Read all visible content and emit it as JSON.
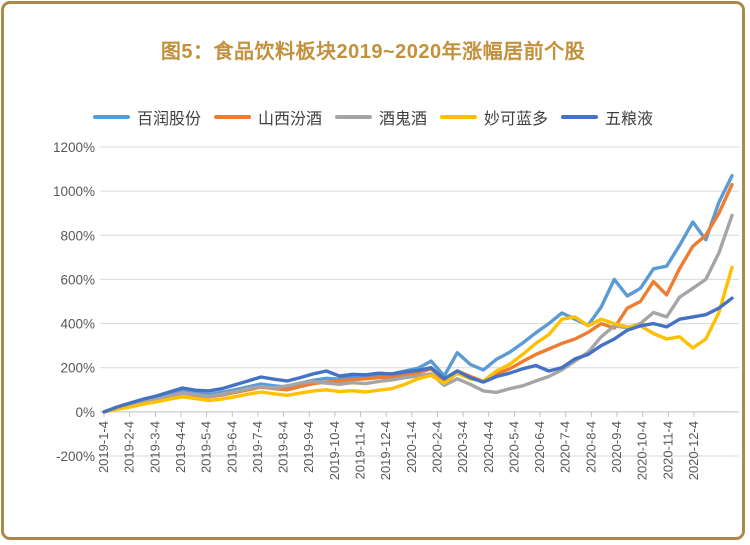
{
  "colors": {
    "card_border": "#AC884A",
    "title_text": "#C2913C",
    "axis_text": "#595959",
    "gridline": "#D9D9D9",
    "axis_line": "#BFBFBF"
  },
  "chart_data": {
    "type": "line",
    "title": "图5：食品饮料板块2019~2020年涨幅居前个股",
    "unit": "%",
    "grid": true,
    "legend_position": "top",
    "ylim": [
      -200,
      1200
    ],
    "y_tick_step": 200,
    "y_tick_labels": [
      "1200%",
      "1000%",
      "800%",
      "600%",
      "400%",
      "200%",
      "0%",
      "-200%"
    ],
    "x_tick_labels": [
      "2019-1-4",
      "2019-2-4",
      "2019-3-4",
      "2019-4-4",
      "2019-5-4",
      "2019-6-4",
      "2019-7-4",
      "2019-8-4",
      "2019-9-4",
      "2019-10-4",
      "2019-11-4",
      "2019-12-4",
      "2020-1-4",
      "2020-2-4",
      "2020-3-4",
      "2020-4-4",
      "2020-5-4",
      "2020-6-4",
      "2020-7-4",
      "2020-8-4",
      "2020-9-4",
      "2020-10-4",
      "2020-11-4",
      "2020-12-4"
    ],
    "series": [
      {
        "name": "百润股份",
        "color": "#5B9BD5",
        "values": [
          0,
          18,
          32,
          48,
          62,
          80,
          95,
          85,
          78,
          88,
          100,
          113,
          126,
          118,
          112,
          130,
          143,
          152,
          148,
          157,
          160,
          166,
          172,
          185,
          198,
          230,
          163,
          268,
          215,
          190,
          238,
          270,
          312,
          358,
          400,
          448,
          420,
          392,
          475,
          600,
          525,
          560,
          648,
          660,
          755,
          860,
          780,
          950,
          1070
        ]
      },
      {
        "name": "山西汾酒",
        "color": "#ED7D31",
        "values": [
          0,
          15,
          28,
          42,
          55,
          70,
          85,
          75,
          68,
          76,
          88,
          100,
          112,
          105,
          100,
          115,
          128,
          135,
          140,
          146,
          150,
          155,
          158,
          168,
          175,
          195,
          140,
          185,
          160,
          138,
          172,
          195,
          228,
          260,
          285,
          310,
          330,
          360,
          400,
          380,
          470,
          500,
          590,
          530,
          650,
          750,
          800,
          900,
          1030
        ]
      },
      {
        "name": "酒鬼酒",
        "color": "#A5A5A5",
        "values": [
          0,
          16,
          30,
          45,
          58,
          72,
          86,
          78,
          70,
          80,
          92,
          105,
          115,
          108,
          118,
          130,
          138,
          130,
          125,
          132,
          128,
          138,
          145,
          155,
          162,
          172,
          120,
          150,
          125,
          95,
          88,
          105,
          118,
          140,
          160,
          190,
          230,
          270,
          340,
          390,
          380,
          400,
          450,
          430,
          520,
          560,
          600,
          720,
          890
        ]
      },
      {
        "name": "妙可蓝多",
        "color": "#FFC000",
        "values": [
          0,
          12,
          22,
          35,
          45,
          58,
          68,
          60,
          52,
          58,
          68,
          80,
          90,
          82,
          75,
          85,
          95,
          100,
          92,
          96,
          90,
          98,
          105,
          125,
          150,
          165,
          130,
          175,
          150,
          140,
          185,
          215,
          260,
          310,
          350,
          420,
          430,
          390,
          420,
          400,
          385,
          390,
          355,
          330,
          340,
          290,
          330,
          450,
          655
        ]
      },
      {
        "name": "五粮液",
        "color": "#4472C4",
        "values": [
          0,
          22,
          40,
          58,
          72,
          90,
          108,
          98,
          95,
          105,
          122,
          140,
          158,
          148,
          140,
          155,
          172,
          185,
          162,
          170,
          168,
          175,
          172,
          180,
          188,
          200,
          150,
          185,
          155,
          135,
          160,
          175,
          195,
          210,
          185,
          200,
          240,
          260,
          300,
          330,
          370,
          390,
          400,
          385,
          420,
          430,
          440,
          470,
          515
        ]
      }
    ]
  }
}
